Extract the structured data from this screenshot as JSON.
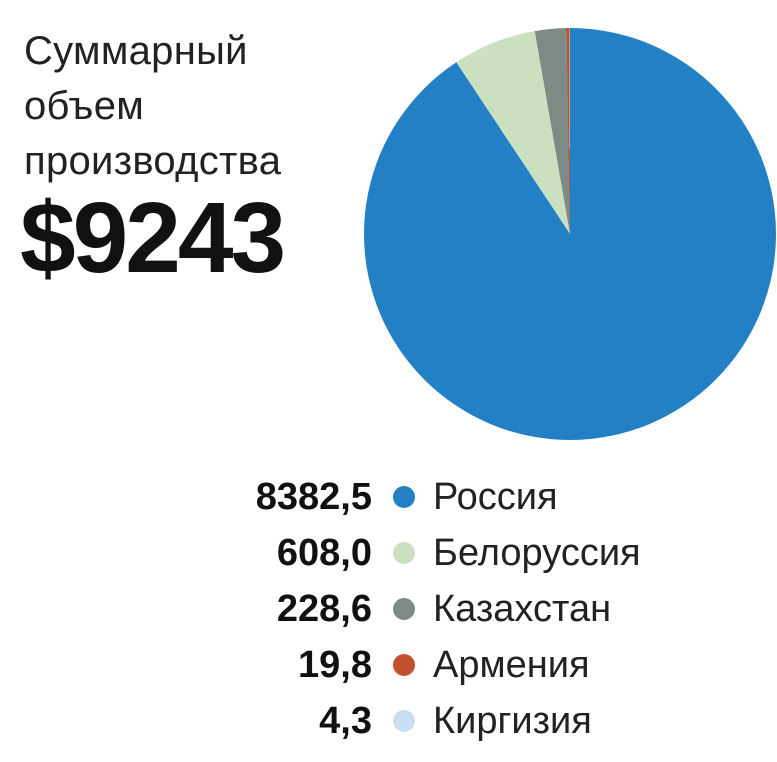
{
  "header": {
    "title_lines": [
      "Суммарный",
      "объем",
      "производства"
    ],
    "total_value": "$9243"
  },
  "chart_data": {
    "type": "pie",
    "title": "Суммарный объем производства",
    "total_label": "$9243",
    "start_angle_deg": 0,
    "direction": "clockwise",
    "legend_position": "bottom",
    "series": [
      {
        "name": "Россия",
        "value": 8382.5,
        "display_value": "8382,5",
        "color": "#2480c4"
      },
      {
        "name": "Белоруссия",
        "value": 608.0,
        "display_value": "608,0",
        "color": "#cbdfc1"
      },
      {
        "name": "Казахстан",
        "value": 228.6,
        "display_value": "228,6",
        "color": "#7d8b84"
      },
      {
        "name": "Армения",
        "value": 19.8,
        "display_value": "19,8",
        "color": "#c1512f"
      },
      {
        "name": "Киргизия",
        "value": 4.3,
        "display_value": "4,3",
        "color": "#cadef3"
      }
    ]
  }
}
